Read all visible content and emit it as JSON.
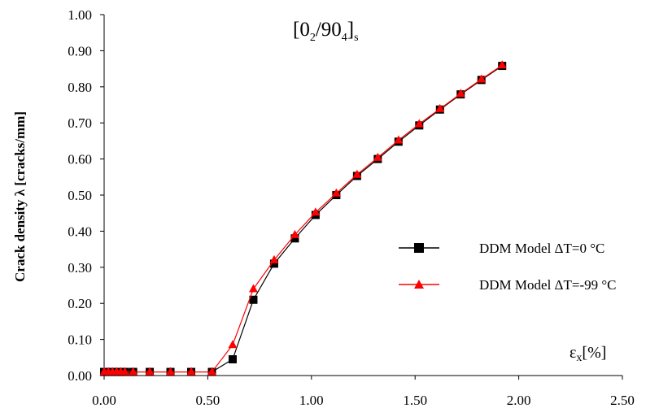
{
  "chart_data": {
    "type": "line",
    "title": {
      "base": "[0",
      "sub1": "2",
      "mid": "/90",
      "sub2": "4",
      "close": "]",
      "sub3": "s"
    },
    "xlabel": {
      "base": "ε",
      "sub": "x",
      "rest": "[%]"
    },
    "ylabel": "Crack density λ [cracks/mm]",
    "xlim": [
      0,
      2.5
    ],
    "ylim": [
      0,
      1.0
    ],
    "x_ticks": [
      "0.00",
      "0.50",
      "1.00",
      "1.50",
      "2.00",
      "2.50"
    ],
    "y_ticks": [
      "0.00",
      "0.10",
      "0.20",
      "0.30",
      "0.40",
      "0.50",
      "0.60",
      "0.70",
      "0.80",
      "0.90",
      "1.00"
    ],
    "grid": false,
    "legend_position": "right",
    "series": [
      {
        "name": "DDM Model ΔT=0 °C",
        "color": "#000000",
        "marker": "square",
        "x": [
          0.0,
          0.02,
          0.04,
          0.06,
          0.08,
          0.1,
          0.14,
          0.22,
          0.32,
          0.42,
          0.52,
          0.62,
          0.72,
          0.82,
          0.92,
          1.02,
          1.12,
          1.22,
          1.32,
          1.42,
          1.52,
          1.62,
          1.72,
          1.82,
          1.92
        ],
        "y": [
          0.01,
          0.01,
          0.01,
          0.01,
          0.01,
          0.01,
          0.01,
          0.01,
          0.01,
          0.01,
          0.01,
          0.045,
          0.21,
          0.31,
          0.38,
          0.445,
          0.5,
          0.553,
          0.6,
          0.648,
          0.693,
          0.737,
          0.779,
          0.819,
          0.858
        ]
      },
      {
        "name": "DDM Model ΔT=-99 °C",
        "color": "#ff0000",
        "marker": "triangle",
        "x": [
          0.0,
          0.02,
          0.04,
          0.06,
          0.08,
          0.1,
          0.14,
          0.22,
          0.32,
          0.42,
          0.52,
          0.62,
          0.72,
          0.82,
          0.92,
          1.02,
          1.12,
          1.22,
          1.32,
          1.42,
          1.52,
          1.62,
          1.72,
          1.82,
          1.92
        ],
        "y": [
          0.01,
          0.01,
          0.01,
          0.01,
          0.01,
          0.01,
          0.01,
          0.01,
          0.01,
          0.01,
          0.01,
          0.085,
          0.24,
          0.32,
          0.39,
          0.452,
          0.505,
          0.557,
          0.604,
          0.652,
          0.697,
          0.739,
          0.781,
          0.821,
          0.86
        ]
      }
    ]
  }
}
